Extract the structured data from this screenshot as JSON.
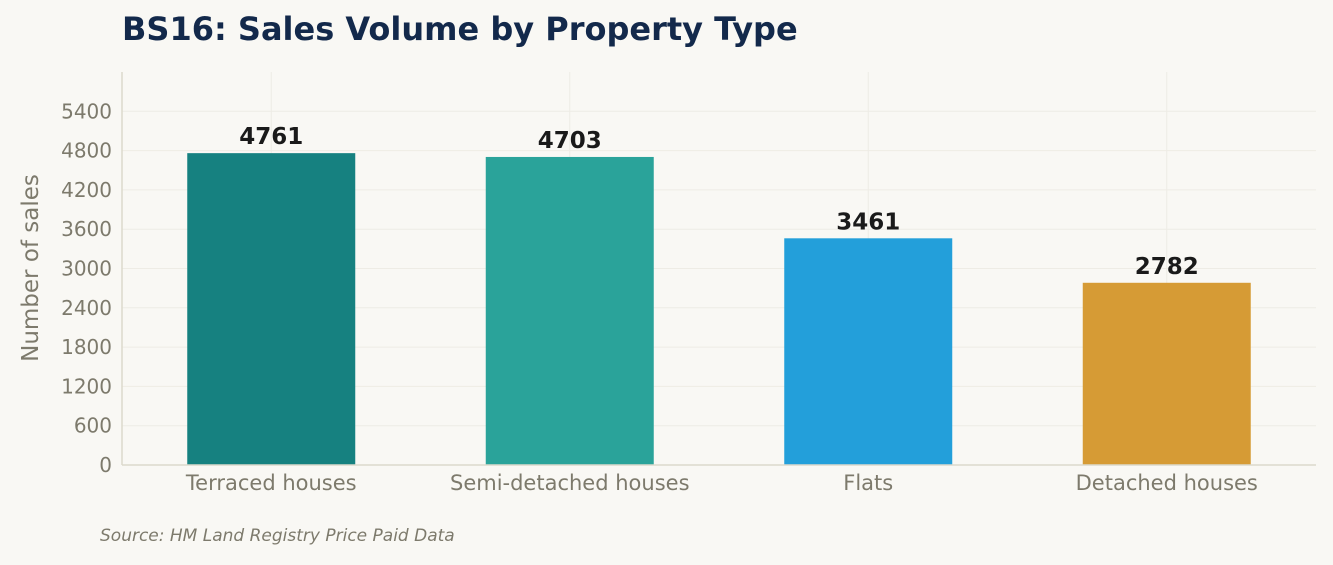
{
  "title": "BS16: Sales Volume by Property Type",
  "source": "Source: HM Land Registry Price Paid Data",
  "chart_data": {
    "type": "bar",
    "title": "BS16: Sales Volume by Property Type",
    "categories": [
      "Terraced houses",
      "Semi-detached houses",
      "Flats",
      "Detached houses"
    ],
    "values": [
      4761,
      4703,
      3461,
      2782
    ],
    "colors": [
      "#168180",
      "#2aa39a",
      "#239fda",
      "#d69b35"
    ],
    "xlabel": "",
    "ylabel": "Number of sales",
    "ylim": [
      0,
      6000
    ],
    "yticks": [
      0,
      600,
      1200,
      1800,
      2400,
      3000,
      3600,
      4200,
      4800,
      5400
    ],
    "grid": true,
    "legend": "none"
  }
}
